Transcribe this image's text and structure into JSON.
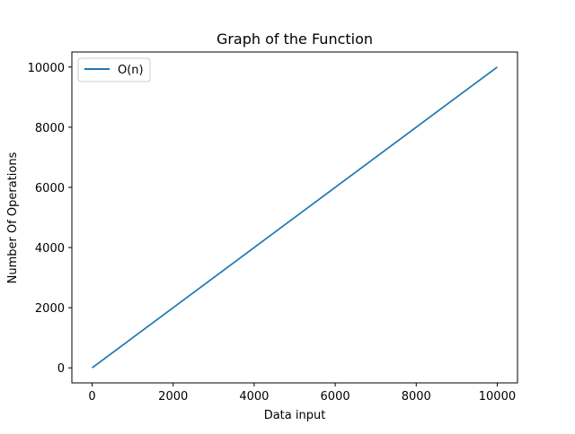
{
  "chart_data": {
    "type": "line",
    "title": "Graph of the Function",
    "xlabel": "Data input",
    "ylabel": "Number Of Operations",
    "xlim": [
      -500,
      10500
    ],
    "ylim": [
      -500,
      10500
    ],
    "xticks": [
      0,
      2000,
      4000,
      6000,
      8000,
      10000
    ],
    "yticks": [
      0,
      2000,
      4000,
      6000,
      8000,
      10000
    ],
    "grid": false,
    "legend_position": "top-left",
    "series": [
      {
        "name": "O(n)",
        "color": "#1f77b4",
        "x": [
          0,
          10000
        ],
        "y": [
          0,
          10000
        ]
      }
    ]
  }
}
